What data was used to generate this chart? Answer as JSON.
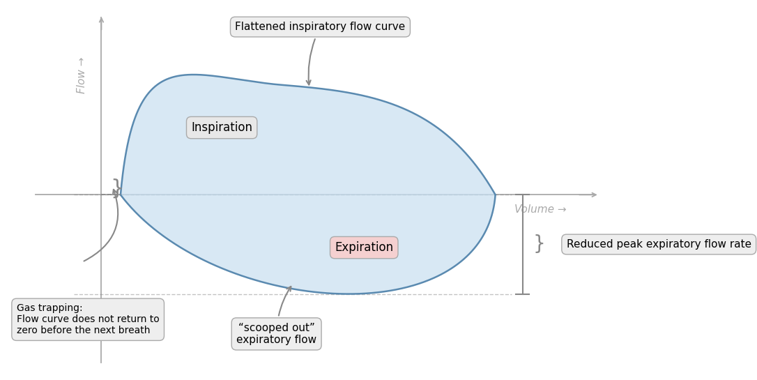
{
  "bg_color": "#ffffff",
  "fill_color": "#c8dff0",
  "fill_alpha": 0.7,
  "loop_edge_color": "#5a8ab0",
  "loop_edge_width": 1.8,
  "axis_color": "#aaaaaa",
  "annotation_color": "#888888",
  "flow_label": "Flow →",
  "volume_label": "Volume →",
  "inspiration_label": "Inspiration",
  "expiration_label": "Expiration",
  "annotation1_text": "Flattened inspiratory flow curve",
  "annotation2_text": "“scooped out”\nexpiratory flow",
  "annotation3_text": "Gas trapping:\nFlow curve does not return to\nzero before the next breath",
  "annotation4_text": "Reduced peak expiratory flow rate",
  "xlim": [
    -1.8,
    9.5
  ],
  "ylim": [
    -3.8,
    4.0
  ],
  "insp_box_facecolor": "#e8e8e8",
  "exp_box_facecolor": "#f5d0d0",
  "ann_box_facecolor": "#eeeeee",
  "ann_box_edgecolor": "#aaaaaa"
}
